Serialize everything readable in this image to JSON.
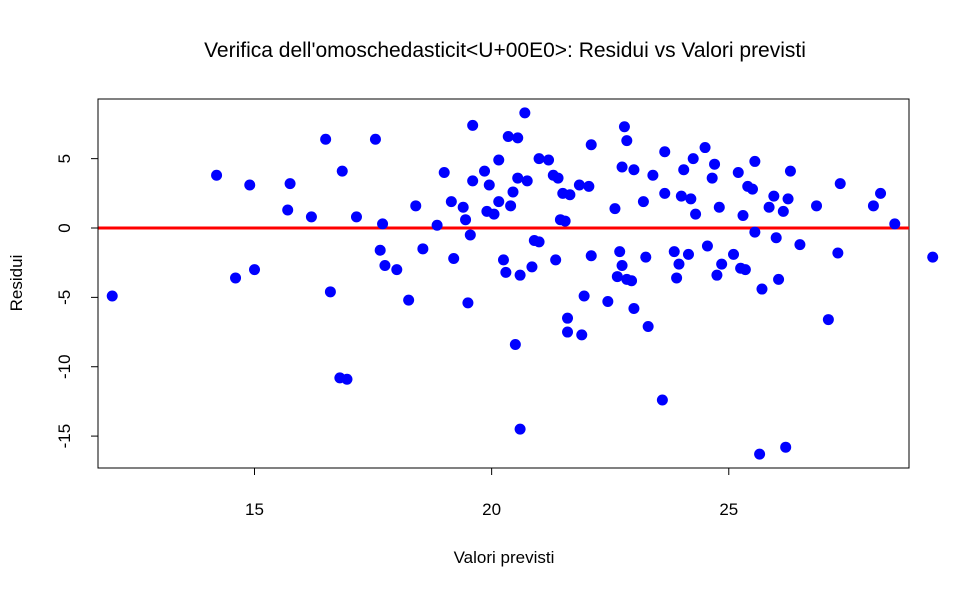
{
  "chart_data": {
    "type": "scatter",
    "title": "Verifica dell'omoschedasticit<U+00E0>: Residui vs Valori previsti",
    "xlabel": "Valori previsti",
    "ylabel": "Residui",
    "xlim": [
      11.7,
      28.8
    ],
    "ylim": [
      -17.3,
      9.3
    ],
    "x_ticks": [
      15,
      20,
      25
    ],
    "y_ticks": [
      -15,
      -10,
      -5,
      0,
      5
    ],
    "x_tick_labels": [
      "15",
      "20",
      "25"
    ],
    "y_tick_labels": [
      "-15",
      "-10",
      "-5",
      "0",
      "5"
    ],
    "grid": false,
    "reference_line": {
      "y": 0,
      "color": "#ff0000"
    },
    "point_color": "#0000ff",
    "points": [
      {
        "x": 12.0,
        "y": -4.9
      },
      {
        "x": 14.2,
        "y": 3.8
      },
      {
        "x": 14.6,
        "y": -3.6
      },
      {
        "x": 14.9,
        "y": 3.1
      },
      {
        "x": 15.0,
        "y": -3.0
      },
      {
        "x": 15.7,
        "y": 1.3
      },
      {
        "x": 15.75,
        "y": 3.2
      },
      {
        "x": 16.2,
        "y": 0.8
      },
      {
        "x": 16.5,
        "y": 6.4
      },
      {
        "x": 16.6,
        "y": -4.6
      },
      {
        "x": 16.8,
        "y": -10.8
      },
      {
        "x": 16.85,
        "y": 4.1
      },
      {
        "x": 16.95,
        "y": -10.9
      },
      {
        "x": 17.15,
        "y": 0.8
      },
      {
        "x": 17.55,
        "y": 6.4
      },
      {
        "x": 17.65,
        "y": -1.6
      },
      {
        "x": 17.7,
        "y": 0.3
      },
      {
        "x": 17.75,
        "y": -2.7
      },
      {
        "x": 18.0,
        "y": -3.0
      },
      {
        "x": 18.25,
        "y": -5.2
      },
      {
        "x": 18.4,
        "y": 1.6
      },
      {
        "x": 18.55,
        "y": -1.5
      },
      {
        "x": 18.85,
        "y": 0.2
      },
      {
        "x": 19.0,
        "y": 4.0
      },
      {
        "x": 19.15,
        "y": 1.9
      },
      {
        "x": 19.2,
        "y": -2.2
      },
      {
        "x": 19.4,
        "y": 1.5
      },
      {
        "x": 19.45,
        "y": 0.6
      },
      {
        "x": 19.5,
        "y": -5.4
      },
      {
        "x": 19.55,
        "y": -0.5
      },
      {
        "x": 19.6,
        "y": 7.4
      },
      {
        "x": 19.6,
        "y": 3.4
      },
      {
        "x": 19.85,
        "y": 4.1
      },
      {
        "x": 19.9,
        "y": 1.2
      },
      {
        "x": 19.95,
        "y": 3.1
      },
      {
        "x": 20.05,
        "y": 1.0
      },
      {
        "x": 20.15,
        "y": 4.9
      },
      {
        "x": 20.15,
        "y": 1.9
      },
      {
        "x": 20.25,
        "y": -2.3
      },
      {
        "x": 20.3,
        "y": -3.2
      },
      {
        "x": 20.35,
        "y": 6.6
      },
      {
        "x": 20.4,
        "y": 1.6
      },
      {
        "x": 20.45,
        "y": 2.6
      },
      {
        "x": 20.5,
        "y": -8.4
      },
      {
        "x": 20.55,
        "y": 6.5
      },
      {
        "x": 20.55,
        "y": 3.6
      },
      {
        "x": 20.6,
        "y": -3.4
      },
      {
        "x": 20.6,
        "y": -14.5
      },
      {
        "x": 20.7,
        "y": 8.3
      },
      {
        "x": 20.75,
        "y": 3.4
      },
      {
        "x": 20.85,
        "y": -2.8
      },
      {
        "x": 20.9,
        "y": -0.9
      },
      {
        "x": 21.0,
        "y": -1.0
      },
      {
        "x": 21.0,
        "y": 5.0
      },
      {
        "x": 21.2,
        "y": 4.9
      },
      {
        "x": 21.3,
        "y": 3.8
      },
      {
        "x": 21.35,
        "y": -2.3
      },
      {
        "x": 21.4,
        "y": 3.6
      },
      {
        "x": 21.45,
        "y": 0.6
      },
      {
        "x": 21.5,
        "y": 2.5
      },
      {
        "x": 21.55,
        "y": 0.5
      },
      {
        "x": 21.6,
        "y": -6.5
      },
      {
        "x": 21.6,
        "y": -7.5
      },
      {
        "x": 21.65,
        "y": 2.4
      },
      {
        "x": 21.85,
        "y": 3.1
      },
      {
        "x": 21.9,
        "y": -7.7
      },
      {
        "x": 21.95,
        "y": -4.9
      },
      {
        "x": 22.05,
        "y": 3.0
      },
      {
        "x": 22.1,
        "y": 6.0
      },
      {
        "x": 22.1,
        "y": -2.0
      },
      {
        "x": 22.45,
        "y": -5.3
      },
      {
        "x": 22.6,
        "y": 1.4
      },
      {
        "x": 22.65,
        "y": -3.5
      },
      {
        "x": 22.7,
        "y": -1.7
      },
      {
        "x": 22.75,
        "y": 4.4
      },
      {
        "x": 22.75,
        "y": -2.7
      },
      {
        "x": 22.8,
        "y": 7.3
      },
      {
        "x": 22.85,
        "y": 6.3
      },
      {
        "x": 22.85,
        "y": -3.7
      },
      {
        "x": 22.95,
        "y": -3.8
      },
      {
        "x": 23.0,
        "y": 4.2
      },
      {
        "x": 23.0,
        "y": -5.8
      },
      {
        "x": 23.2,
        "y": 1.9
      },
      {
        "x": 23.25,
        "y": -2.1
      },
      {
        "x": 23.3,
        "y": -7.1
      },
      {
        "x": 23.4,
        "y": 3.8
      },
      {
        "x": 23.6,
        "y": -12.4
      },
      {
        "x": 23.65,
        "y": 5.5
      },
      {
        "x": 23.65,
        "y": 2.5
      },
      {
        "x": 23.85,
        "y": -1.7
      },
      {
        "x": 23.9,
        "y": -3.6
      },
      {
        "x": 23.95,
        "y": -2.6
      },
      {
        "x": 24.0,
        "y": 2.3
      },
      {
        "x": 24.05,
        "y": 4.2
      },
      {
        "x": 24.15,
        "y": -1.9
      },
      {
        "x": 24.2,
        "y": 2.1
      },
      {
        "x": 24.25,
        "y": 5.0
      },
      {
        "x": 24.3,
        "y": 1.0
      },
      {
        "x": 24.5,
        "y": 5.8
      },
      {
        "x": 24.55,
        "y": -1.3
      },
      {
        "x": 24.65,
        "y": 3.6
      },
      {
        "x": 24.7,
        "y": 4.6
      },
      {
        "x": 24.75,
        "y": -3.4
      },
      {
        "x": 24.8,
        "y": 1.5
      },
      {
        "x": 24.85,
        "y": -2.6
      },
      {
        "x": 25.1,
        "y": -1.9
      },
      {
        "x": 25.2,
        "y": 4.0
      },
      {
        "x": 25.25,
        "y": -2.9
      },
      {
        "x": 25.3,
        "y": 0.9
      },
      {
        "x": 25.35,
        "y": -3.0
      },
      {
        "x": 25.4,
        "y": 3.0
      },
      {
        "x": 25.5,
        "y": 2.8
      },
      {
        "x": 25.55,
        "y": 4.8
      },
      {
        "x": 25.55,
        "y": -0.3
      },
      {
        "x": 25.65,
        "y": -16.3
      },
      {
        "x": 25.7,
        "y": -4.4
      },
      {
        "x": 25.85,
        "y": 1.5
      },
      {
        "x": 25.95,
        "y": 2.3
      },
      {
        "x": 26.0,
        "y": -0.7
      },
      {
        "x": 26.05,
        "y": -3.7
      },
      {
        "x": 26.15,
        "y": 1.2
      },
      {
        "x": 26.2,
        "y": -15.8
      },
      {
        "x": 26.25,
        "y": 2.1
      },
      {
        "x": 26.3,
        "y": 4.1
      },
      {
        "x": 26.5,
        "y": -1.2
      },
      {
        "x": 26.85,
        "y": 1.6
      },
      {
        "x": 27.1,
        "y": -6.6
      },
      {
        "x": 27.3,
        "y": -1.8
      },
      {
        "x": 27.35,
        "y": 3.2
      },
      {
        "x": 28.05,
        "y": 1.6
      },
      {
        "x": 28.2,
        "y": 2.5
      },
      {
        "x": 28.5,
        "y": 0.3
      },
      {
        "x": 29.3,
        "y": -2.1
      }
    ]
  }
}
